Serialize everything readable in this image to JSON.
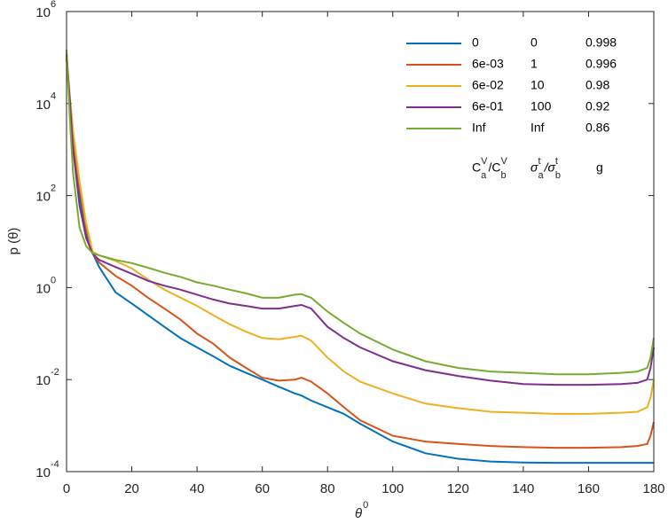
{
  "chart_data": {
    "type": "line",
    "log_y": true,
    "box": true,
    "xlabel": {
      "text": "θ",
      "sup": "0"
    },
    "ylabel": "p (θ)",
    "xlim": [
      0,
      180
    ],
    "xticks": [
      0,
      20,
      40,
      60,
      80,
      100,
      120,
      140,
      160,
      180
    ],
    "ylim": [
      0.0001,
      1000000
    ],
    "yticks": [
      {
        "value": 0.0001,
        "label": "10",
        "exponent": "-4"
      },
      {
        "value": 0.01,
        "label": "10",
        "exponent": "-2"
      },
      {
        "value": 1,
        "label": "10",
        "exponent": "0"
      },
      {
        "value": 100,
        "label": "10",
        "exponent": "2"
      },
      {
        "value": 10000,
        "label": "10",
        "exponent": "4"
      },
      {
        "value": 1000000,
        "label": "10",
        "exponent": "6"
      }
    ],
    "x": [
      0,
      1,
      2,
      4,
      6,
      8,
      10,
      15,
      20,
      25,
      30,
      35,
      40,
      45,
      50,
      55,
      60,
      65,
      70,
      72,
      75,
      80,
      85,
      90,
      100,
      110,
      120,
      130,
      140,
      150,
      160,
      170,
      175,
      178,
      179,
      180
    ],
    "series": [
      {
        "name": "0",
        "sigma_ratio": "0",
        "g": "0.998",
        "color": "#0072bd",
        "values": [
          100000,
          10000,
          1585,
          100,
          15.8,
          5.6,
          2.8,
          0.79,
          0.45,
          0.25,
          0.14,
          0.079,
          0.05,
          0.032,
          0.02,
          0.014,
          0.01,
          0.007,
          0.005,
          0.0045,
          0.0035,
          0.0025,
          0.0018,
          0.0011,
          0.00045,
          0.00025,
          0.00019,
          0.000166,
          0.000158,
          0.000155,
          0.000155,
          0.000155,
          0.000155,
          0.000155,
          0.000155,
          0.000155
        ]
      },
      {
        "name": "6e-03",
        "sigma_ratio": "1",
        "g": "0.996",
        "color": "#d95319",
        "values": [
          100000,
          12000,
          2000,
          150,
          20,
          5.6,
          3.5,
          1.8,
          1.1,
          0.6,
          0.35,
          0.2,
          0.1,
          0.06,
          0.03,
          0.018,
          0.011,
          0.0095,
          0.01,
          0.011,
          0.009,
          0.005,
          0.0025,
          0.0013,
          0.0006,
          0.00045,
          0.0004,
          0.00036,
          0.00034,
          0.00033,
          0.00033,
          0.00034,
          0.00036,
          0.0004,
          0.0006,
          0.0012
        ]
      },
      {
        "name": "6e-02",
        "sigma_ratio": "10",
        "g": "0.98",
        "color": "#edb120",
        "values": [
          120000,
          15000,
          2500,
          200,
          25,
          6,
          5,
          3.8,
          2.6,
          1.5,
          0.9,
          0.6,
          0.4,
          0.25,
          0.16,
          0.11,
          0.08,
          0.075,
          0.085,
          0.09,
          0.07,
          0.03,
          0.015,
          0.009,
          0.005,
          0.003,
          0.0024,
          0.002,
          0.0019,
          0.0018,
          0.0018,
          0.0019,
          0.002,
          0.0025,
          0.004,
          0.01
        ]
      },
      {
        "name": "6e-01",
        "sigma_ratio": "100",
        "g": "0.92",
        "color": "#7e2f8e",
        "values": [
          120000,
          12000,
          1000,
          60,
          12,
          5.5,
          4,
          2.8,
          2,
          1.4,
          1.1,
          0.9,
          0.7,
          0.55,
          0.45,
          0.4,
          0.35,
          0.35,
          0.4,
          0.42,
          0.35,
          0.14,
          0.08,
          0.05,
          0.025,
          0.016,
          0.012,
          0.0095,
          0.008,
          0.0077,
          0.0077,
          0.008,
          0.0085,
          0.01,
          0.018,
          0.05
        ]
      },
      {
        "name": "Inf",
        "sigma_ratio": "Inf",
        "g": "0.86",
        "color": "#77ac30",
        "values": [
          150000,
          5000,
          300,
          20,
          8,
          5.6,
          5,
          4,
          3.4,
          2.7,
          2.1,
          1.7,
          1.3,
          1.1,
          0.9,
          0.75,
          0.6,
          0.6,
          0.7,
          0.72,
          0.6,
          0.3,
          0.17,
          0.1,
          0.045,
          0.025,
          0.018,
          0.015,
          0.014,
          0.013,
          0.013,
          0.014,
          0.015,
          0.018,
          0.03,
          0.08
        ]
      }
    ],
    "legend_headers": [
      [
        [
          "C",
          "V",
          "a"
        ],
        [
          "/C",
          "V",
          "b"
        ]
      ],
      [
        [
          "σ",
          "t",
          "a"
        ],
        [
          "/σ",
          "t",
          "b"
        ]
      ],
      [
        [
          "g"
        ]
      ]
    ]
  }
}
